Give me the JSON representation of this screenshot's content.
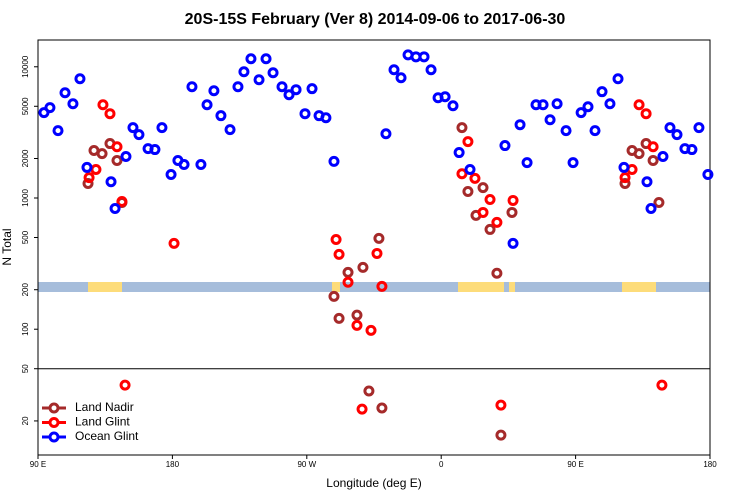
{
  "chart_data": {
    "type": "scatter",
    "title": "20S-15S February (Ver 8)   2014-09-06 to 2017-06-30",
    "xlabel": "Longitude (deg E)",
    "ylabel": "N Total",
    "xlim": [
      90,
      540
    ],
    "xticks": [
      {
        "value": 90,
        "label": "90 E"
      },
      {
        "value": 180,
        "label": "180"
      },
      {
        "value": 270,
        "label": "90 W"
      },
      {
        "value": 360,
        "label": "0"
      },
      {
        "value": 450,
        "label": "90 E"
      },
      {
        "value": 540,
        "label": "180"
      }
    ],
    "ylim": [
      11,
      16000
    ],
    "yscale": "log",
    "yticks": [
      20,
      50,
      100,
      200,
      500,
      1000,
      2000,
      5000,
      10000
    ],
    "divider": 50,
    "legend": "bottom-left",
    "series": [
      {
        "name": "Land Nadir",
        "color": "#a52a2a",
        "x": [
          123.5,
          127.5,
          132.9,
          138.2,
          142.9,
          146.2,
          288.2,
          291.6,
          297.6,
          303.6,
          307.6,
          311.6,
          318.3,
          320.3,
          373.9,
          377.9,
          383.3,
          388.0,
          392.7,
          397.3,
          400.0,
          407.4,
          483.1,
          487.8,
          492.5,
          497.2,
          501.9,
          505.8
        ],
        "values": [
          1290,
          2300,
          2180,
          2600,
          1930,
          924,
          178,
          121,
          271,
          128,
          296,
          33.8,
          492,
          25.1,
          3440,
          1120,
          737,
          1200,
          576,
          267,
          15.6,
          776,
          1290,
          2300,
          2180,
          2600,
          1930,
          924
        ]
      },
      {
        "name": "Land Glint",
        "color": "#ff0000",
        "x": [
          124.2,
          128.8,
          133.5,
          138.2,
          142.9,
          146.2,
          148.3,
          181.1,
          289.6,
          291.6,
          297.6,
          303.6,
          307.0,
          313.0,
          317.0,
          320.3,
          373.9,
          377.9,
          382.6,
          388.0,
          392.7,
          397.3,
          400.0,
          408.1,
          483.1,
          487.8,
          492.5,
          497.2,
          501.9,
          507.8
        ],
        "values": [
          1430,
          1650,
          5140,
          4390,
          2460,
          940,
          37.5,
          451,
          483,
          372,
          228,
          107,
          24.6,
          98,
          378,
          212,
          1530,
          2690,
          1410,
          776,
          974,
          652,
          26.4,
          958,
          1430,
          1650,
          5140,
          4390,
          2460,
          37.5
        ]
      },
      {
        "name": "Ocean Glint",
        "color": "#0000ff",
        "x": [
          94.0,
          98.0,
          103.4,
          108.1,
          113.4,
          118.1,
          122.8,
          138.9,
          141.6,
          148.9,
          153.6,
          157.6,
          163.7,
          168.3,
          173.0,
          179.1,
          183.7,
          187.8,
          193.1,
          199.1,
          203.2,
          207.8,
          212.5,
          218.6,
          223.9,
          227.9,
          232.6,
          238.0,
          242.7,
          247.4,
          253.4,
          258.1,
          262.8,
          268.8,
          273.5,
          278.2,
          282.8,
          288.2,
          323.0,
          328.4,
          333.1,
          337.8,
          343.1,
          348.5,
          353.2,
          357.9,
          362.6,
          367.9,
          372.0,
          379.3,
          402.7,
          408.1,
          412.8,
          417.5,
          423.5,
          428.2,
          432.9,
          437.6,
          443.6,
          448.3,
          453.7,
          458.3,
          463.0,
          467.7,
          473.0,
          478.4,
          482.4,
          497.8,
          500.5,
          508.5,
          513.2,
          517.9,
          523.2,
          527.9,
          532.6,
          538.6
        ],
        "values": [
          4470,
          4880,
          3260,
          6340,
          5230,
          8110,
          1710,
          1330,
          832,
          2070,
          3440,
          3040,
          2380,
          2340,
          3440,
          1510,
          1930,
          1800,
          7050,
          1800,
          5140,
          6570,
          4240,
          3320,
          7050,
          9160,
          11510,
          7960,
          11510,
          9000,
          7050,
          6120,
          6690,
          4390,
          6810,
          4240,
          4090,
          1900,
          3090,
          9490,
          8250,
          12330,
          11910,
          11910,
          9490,
          5810,
          5910,
          5050,
          2220,
          1650,
          2510,
          451,
          3620,
          1860,
          5140,
          5140,
          3950,
          5230,
          3260,
          1860,
          4470,
          4960,
          3260,
          6460,
          5230,
          8110,
          1710,
          1330,
          832,
          2070,
          3440,
          3040,
          2380,
          2340,
          3440,
          1510
        ]
      }
    ]
  }
}
